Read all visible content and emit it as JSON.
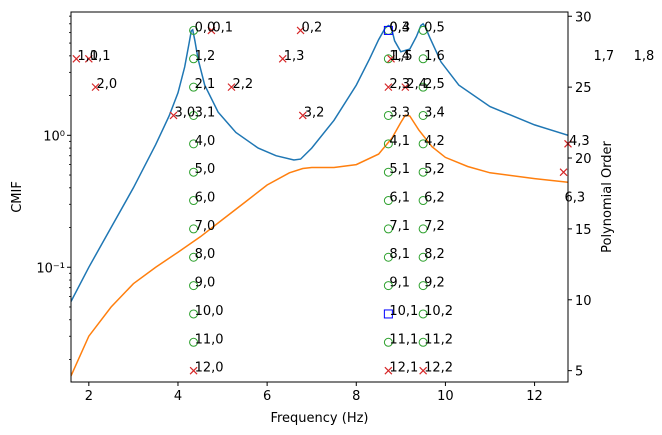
{
  "chart_data": {
    "type": "line",
    "xlabel": "Frequency (Hz)",
    "ylabel": "CMIF",
    "y2label": "Polynomial Order",
    "xlim": [
      1.6,
      12.75
    ],
    "ylim": [
      0.0135,
      8.6
    ],
    "y2lim": [
      4.2,
      30.3
    ],
    "yscale": "log",
    "x_ticks": [
      2,
      4,
      6,
      8,
      10,
      12
    ],
    "y_ticks": [
      {
        "value": 0.1,
        "label": "10⁻¹"
      },
      {
        "value": 1,
        "label": "10⁰"
      }
    ],
    "y2_ticks": [
      5,
      10,
      15,
      20,
      25,
      30
    ],
    "colors": {
      "cmif1": "#1f77b4",
      "cmif2": "#ff7f0e",
      "stable": "#2ca02c",
      "unstable": "#d62728",
      "freq_stable": "#0000ff"
    },
    "series": [
      {
        "key": "cmif1",
        "x": [
          1.6,
          2.0,
          2.5,
          3.0,
          3.5,
          3.8,
          4.0,
          4.15,
          4.25,
          4.3,
          4.33,
          4.38,
          4.45,
          4.6,
          4.9,
          5.3,
          5.8,
          6.2,
          6.6,
          6.75,
          7.0,
          7.5,
          8.0,
          8.3,
          8.5,
          8.65,
          8.72,
          8.76,
          8.8,
          8.86,
          9.0,
          9.2,
          9.35,
          9.45,
          9.5,
          9.55,
          9.65,
          9.9,
          10.3,
          11.0,
          12.0,
          12.75
        ],
        "y": [
          0.055,
          0.1,
          0.2,
          0.4,
          0.85,
          1.4,
          2.1,
          3.3,
          5.0,
          6.2,
          6.3,
          5.2,
          3.8,
          2.4,
          1.5,
          1.05,
          0.8,
          0.7,
          0.65,
          0.66,
          0.8,
          1.3,
          2.4,
          3.8,
          5.3,
          6.5,
          6.8,
          6.7,
          6.3,
          5.2,
          4.3,
          4.5,
          5.6,
          6.8,
          7.0,
          6.6,
          5.5,
          3.6,
          2.4,
          1.65,
          1.2,
          1.0
        ]
      },
      {
        "key": "cmif2",
        "x": [
          1.6,
          2.0,
          2.5,
          3.0,
          3.5,
          4.0,
          4.5,
          5.0,
          5.5,
          6.0,
          6.5,
          6.8,
          7.0,
          7.5,
          8.0,
          8.5,
          8.8,
          9.0,
          9.1,
          9.2,
          9.4,
          9.7,
          10.0,
          10.5,
          11.0,
          12.0,
          12.75
        ],
        "y": [
          0.015,
          0.03,
          0.05,
          0.075,
          0.1,
          0.13,
          0.17,
          0.23,
          0.31,
          0.42,
          0.52,
          0.56,
          0.57,
          0.57,
          0.6,
          0.72,
          0.95,
          1.25,
          1.42,
          1.4,
          1.1,
          0.82,
          0.68,
          0.58,
          0.52,
          0.47,
          0.44
        ]
      }
    ],
    "stable": [
      {
        "x": 4.35,
        "order": 29
      },
      {
        "x": 4.35,
        "order": 27
      },
      {
        "x": 4.35,
        "order": 25
      },
      {
        "x": 4.35,
        "order": 23
      },
      {
        "x": 4.35,
        "order": 21
      },
      {
        "x": 4.35,
        "order": 19
      },
      {
        "x": 4.35,
        "order": 17
      },
      {
        "x": 4.35,
        "order": 15
      },
      {
        "x": 4.35,
        "order": 13
      },
      {
        "x": 4.35,
        "order": 11
      },
      {
        "x": 4.35,
        "order": 9
      },
      {
        "x": 4.35,
        "order": 7
      },
      {
        "x": 8.72,
        "order": 29
      },
      {
        "x": 8.72,
        "order": 27
      },
      {
        "x": 8.72,
        "order": 23
      },
      {
        "x": 8.72,
        "order": 21
      },
      {
        "x": 8.72,
        "order": 19
      },
      {
        "x": 8.72,
        "order": 17
      },
      {
        "x": 8.72,
        "order": 15
      },
      {
        "x": 8.72,
        "order": 13
      },
      {
        "x": 8.72,
        "order": 11
      },
      {
        "x": 8.72,
        "order": 7
      },
      {
        "x": 9.5,
        "order": 29
      },
      {
        "x": 9.5,
        "order": 27
      },
      {
        "x": 9.5,
        "order": 25
      },
      {
        "x": 9.5,
        "order": 23
      },
      {
        "x": 9.5,
        "order": 21
      },
      {
        "x": 9.5,
        "order": 19
      },
      {
        "x": 9.5,
        "order": 17
      },
      {
        "x": 9.5,
        "order": 15
      },
      {
        "x": 9.5,
        "order": 13
      },
      {
        "x": 9.5,
        "order": 11
      },
      {
        "x": 9.5,
        "order": 9
      },
      {
        "x": 9.5,
        "order": 7
      }
    ],
    "unstable": [
      {
        "x": 4.35,
        "order": 5
      },
      {
        "x": 4.75,
        "order": 29
      },
      {
        "x": 1.72,
        "order": 27
      },
      {
        "x": 2.0,
        "order": 27
      },
      {
        "x": 3.9,
        "order": 23
      },
      {
        "x": 2.15,
        "order": 25
      },
      {
        "x": 5.2,
        "order": 25
      },
      {
        "x": 6.75,
        "order": 29
      },
      {
        "x": 6.35,
        "order": 27
      },
      {
        "x": 6.8,
        "order": 23
      },
      {
        "x": 8.78,
        "order": 27
      },
      {
        "x": 8.72,
        "order": 25
      },
      {
        "x": 9.1,
        "order": 25
      },
      {
        "x": 12.75,
        "order": 21
      },
      {
        "x": 12.65,
        "order": 19
      },
      {
        "x": 8.72,
        "order": 5
      },
      {
        "x": 9.5,
        "order": 5
      }
    ],
    "freq_stable": [
      {
        "x": 8.72,
        "order": 29
      },
      {
        "x": 8.72,
        "order": 9
      }
    ],
    "annotations": [
      {
        "x": 4.35,
        "order": 29,
        "text": "0,0"
      },
      {
        "x": 4.75,
        "order": 29,
        "text": "0,1"
      },
      {
        "x": 6.75,
        "order": 29,
        "text": "0,2"
      },
      {
        "x": 8.72,
        "order": 29,
        "text": "0,3"
      },
      {
        "x": 8.72,
        "order": 29,
        "text": "0,4"
      },
      {
        "x": 9.5,
        "order": 29,
        "text": "0,5"
      },
      {
        "x": 1.72,
        "order": 27,
        "text": "1,0"
      },
      {
        "x": 2.0,
        "order": 27,
        "text": "1,1"
      },
      {
        "x": 4.35,
        "order": 27,
        "text": "1,2"
      },
      {
        "x": 6.35,
        "order": 27,
        "text": "1,3"
      },
      {
        "x": 8.72,
        "order": 27,
        "text": "1,4"
      },
      {
        "x": 8.78,
        "order": 27,
        "text": "1,5"
      },
      {
        "x": 9.5,
        "order": 27,
        "text": "1,6"
      },
      {
        "x": 13.3,
        "order": 27,
        "text": "1,7"
      },
      {
        "x": 14.2,
        "order": 27,
        "text": "1,8"
      },
      {
        "x": 2.15,
        "order": 25,
        "text": "2,0"
      },
      {
        "x": 4.35,
        "order": 25,
        "text": "2,1"
      },
      {
        "x": 5.2,
        "order": 25,
        "text": "2,2"
      },
      {
        "x": 8.72,
        "order": 25,
        "text": "2,3"
      },
      {
        "x": 9.1,
        "order": 25,
        "text": "2,4"
      },
      {
        "x": 9.5,
        "order": 25,
        "text": "2,5"
      },
      {
        "x": 3.9,
        "order": 23,
        "text": "3,0"
      },
      {
        "x": 4.35,
        "order": 23,
        "text": "3,1"
      },
      {
        "x": 6.8,
        "order": 23,
        "text": "3,2"
      },
      {
        "x": 8.72,
        "order": 23,
        "text": "3,3"
      },
      {
        "x": 9.5,
        "order": 23,
        "text": "3,4"
      },
      {
        "x": 4.35,
        "order": 21,
        "text": "4,0"
      },
      {
        "x": 8.72,
        "order": 21,
        "text": "4,1"
      },
      {
        "x": 9.5,
        "order": 21,
        "text": "4,2"
      },
      {
        "x": 12.75,
        "order": 21,
        "text": "4,3"
      },
      {
        "x": 4.35,
        "order": 19,
        "text": "5,0"
      },
      {
        "x": 8.72,
        "order": 19,
        "text": "5,1"
      },
      {
        "x": 9.5,
        "order": 19,
        "text": "5,2"
      },
      {
        "x": 4.35,
        "order": 17,
        "text": "6,0"
      },
      {
        "x": 8.72,
        "order": 17,
        "text": "6,1"
      },
      {
        "x": 9.5,
        "order": 17,
        "text": "6,2"
      },
      {
        "x": 12.65,
        "order": 17,
        "text": "6,3"
      },
      {
        "x": 4.35,
        "order": 15,
        "text": "7,0"
      },
      {
        "x": 8.72,
        "order": 15,
        "text": "7,1"
      },
      {
        "x": 9.5,
        "order": 15,
        "text": "7,2"
      },
      {
        "x": 4.35,
        "order": 13,
        "text": "8,0"
      },
      {
        "x": 8.72,
        "order": 13,
        "text": "8,1"
      },
      {
        "x": 9.5,
        "order": 13,
        "text": "8,2"
      },
      {
        "x": 4.35,
        "order": 11,
        "text": "9,0"
      },
      {
        "x": 8.72,
        "order": 11,
        "text": "9,1"
      },
      {
        "x": 9.5,
        "order": 11,
        "text": "9,2"
      },
      {
        "x": 4.35,
        "order": 9,
        "text": "10,0"
      },
      {
        "x": 8.72,
        "order": 9,
        "text": "10,1"
      },
      {
        "x": 9.5,
        "order": 9,
        "text": "10,2"
      },
      {
        "x": 4.35,
        "order": 7,
        "text": "11,0"
      },
      {
        "x": 8.72,
        "order": 7,
        "text": "11,1"
      },
      {
        "x": 9.5,
        "order": 7,
        "text": "11,2"
      },
      {
        "x": 4.35,
        "order": 5,
        "text": "12,0"
      },
      {
        "x": 8.72,
        "order": 5,
        "text": "12,1"
      },
      {
        "x": 9.5,
        "order": 5,
        "text": "12,2"
      }
    ]
  }
}
